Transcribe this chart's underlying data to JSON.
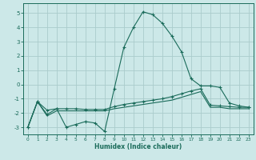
{
  "xlabel": "Humidex (Indice chaleur)",
  "background_color": "#cce8e8",
  "grid_color": "#aacccc",
  "line_color": "#1a6b5a",
  "xlim": [
    -0.5,
    23.5
  ],
  "ylim": [
    -3.5,
    5.7
  ],
  "xticks": [
    0,
    1,
    2,
    3,
    4,
    5,
    6,
    7,
    8,
    9,
    10,
    11,
    12,
    13,
    14,
    15,
    16,
    17,
    18,
    19,
    20,
    21,
    22,
    23
  ],
  "yticks": [
    -3,
    -2,
    -1,
    0,
    1,
    2,
    3,
    4,
    5
  ],
  "line1_x": [
    0,
    1,
    2,
    3,
    4,
    5,
    6,
    7,
    8,
    9,
    10,
    11,
    12,
    13,
    14,
    15,
    16,
    17,
    18,
    19,
    20,
    21,
    22,
    23
  ],
  "line1_y": [
    -3.0,
    -1.2,
    -1.8,
    -1.7,
    -3.0,
    -2.8,
    -2.6,
    -2.7,
    -3.3,
    -0.3,
    2.6,
    4.0,
    5.1,
    4.9,
    4.3,
    3.4,
    2.3,
    0.4,
    -0.1,
    -0.1,
    -0.2,
    -1.3,
    -1.5,
    -1.6
  ],
  "line2_x": [
    0,
    1,
    2,
    3,
    4,
    5,
    6,
    7,
    8,
    9,
    10,
    11,
    12,
    13,
    14,
    15,
    16,
    17,
    18,
    19,
    20,
    21,
    22,
    23
  ],
  "line2_y": [
    -3.0,
    -1.2,
    -2.1,
    -1.7,
    -1.7,
    -1.7,
    -1.75,
    -1.75,
    -1.75,
    -1.55,
    -1.4,
    -1.3,
    -1.2,
    -1.1,
    -1.0,
    -0.85,
    -0.65,
    -0.45,
    -0.3,
    -1.45,
    -1.5,
    -1.55,
    -1.6,
    -1.6
  ],
  "line3_x": [
    0,
    1,
    2,
    3,
    4,
    5,
    6,
    7,
    8,
    9,
    10,
    11,
    12,
    13,
    14,
    15,
    16,
    17,
    18,
    19,
    20,
    21,
    22,
    23
  ],
  "line3_y": [
    -3.0,
    -1.2,
    -2.2,
    -1.85,
    -1.85,
    -1.85,
    -1.85,
    -1.85,
    -1.85,
    -1.7,
    -1.6,
    -1.5,
    -1.4,
    -1.3,
    -1.2,
    -1.1,
    -0.9,
    -0.7,
    -0.5,
    -1.6,
    -1.6,
    -1.7,
    -1.7,
    -1.7
  ]
}
